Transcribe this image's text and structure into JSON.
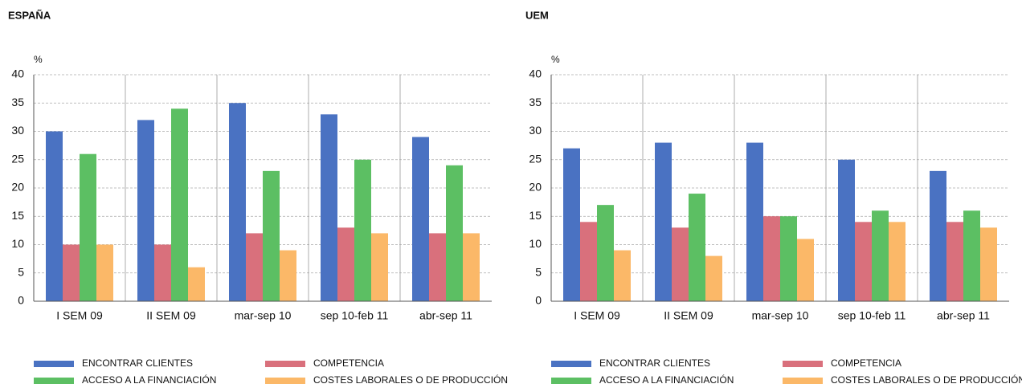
{
  "chart_data": [
    {
      "type": "bar",
      "title": "ESPAÑA",
      "unit": "%",
      "categories": [
        "I SEM 09",
        "II SEM 09",
        "mar-sep 10",
        "sep 10-feb 11",
        "abr-sep 11"
      ],
      "series": [
        {
          "name": "ENCONTRAR CLIENTES",
          "color": "#4a72c2",
          "values": [
            30,
            32,
            35,
            33,
            29
          ]
        },
        {
          "name": "COMPETENCIA",
          "color": "#d9707c",
          "values": [
            10,
            10,
            12,
            13,
            12
          ]
        },
        {
          "name": "ACCESO A LA FINANCIACIÓN",
          "color": "#5cbf63",
          "values": [
            26,
            34,
            23,
            25,
            24
          ]
        },
        {
          "name": "COSTES LABORALES O DE PRODUCCIÓN",
          "color": "#fbb868",
          "values": [
            10,
            6,
            9,
            12,
            12
          ]
        }
      ],
      "ylim": [
        0,
        40
      ],
      "yticks": [
        0,
        5,
        10,
        15,
        20,
        25,
        30,
        35,
        40
      ],
      "grid": true
    },
    {
      "type": "bar",
      "title": "UEM",
      "unit": "%",
      "categories": [
        "I SEM 09",
        "II SEM 09",
        "mar-sep 10",
        "sep 10-feb 11",
        "abr-sep 11"
      ],
      "series": [
        {
          "name": "ENCONTRAR CLIENTES",
          "color": "#4a72c2",
          "values": [
            27,
            28,
            28,
            25,
            23
          ]
        },
        {
          "name": "COMPETENCIA",
          "color": "#d9707c",
          "values": [
            14,
            13,
            15,
            14,
            14
          ]
        },
        {
          "name": "ACCESO A LA FINANCIACIÓN",
          "color": "#5cbf63",
          "values": [
            17,
            19,
            15,
            16,
            16
          ]
        },
        {
          "name": "COSTES LABORALES O DE PRODUCCIÓN",
          "color": "#fbb868",
          "values": [
            9,
            8,
            11,
            14,
            13
          ]
        }
      ],
      "ylim": [
        0,
        40
      ],
      "yticks": [
        0,
        5,
        10,
        15,
        20,
        25,
        30,
        35,
        40
      ],
      "grid": true
    }
  ]
}
